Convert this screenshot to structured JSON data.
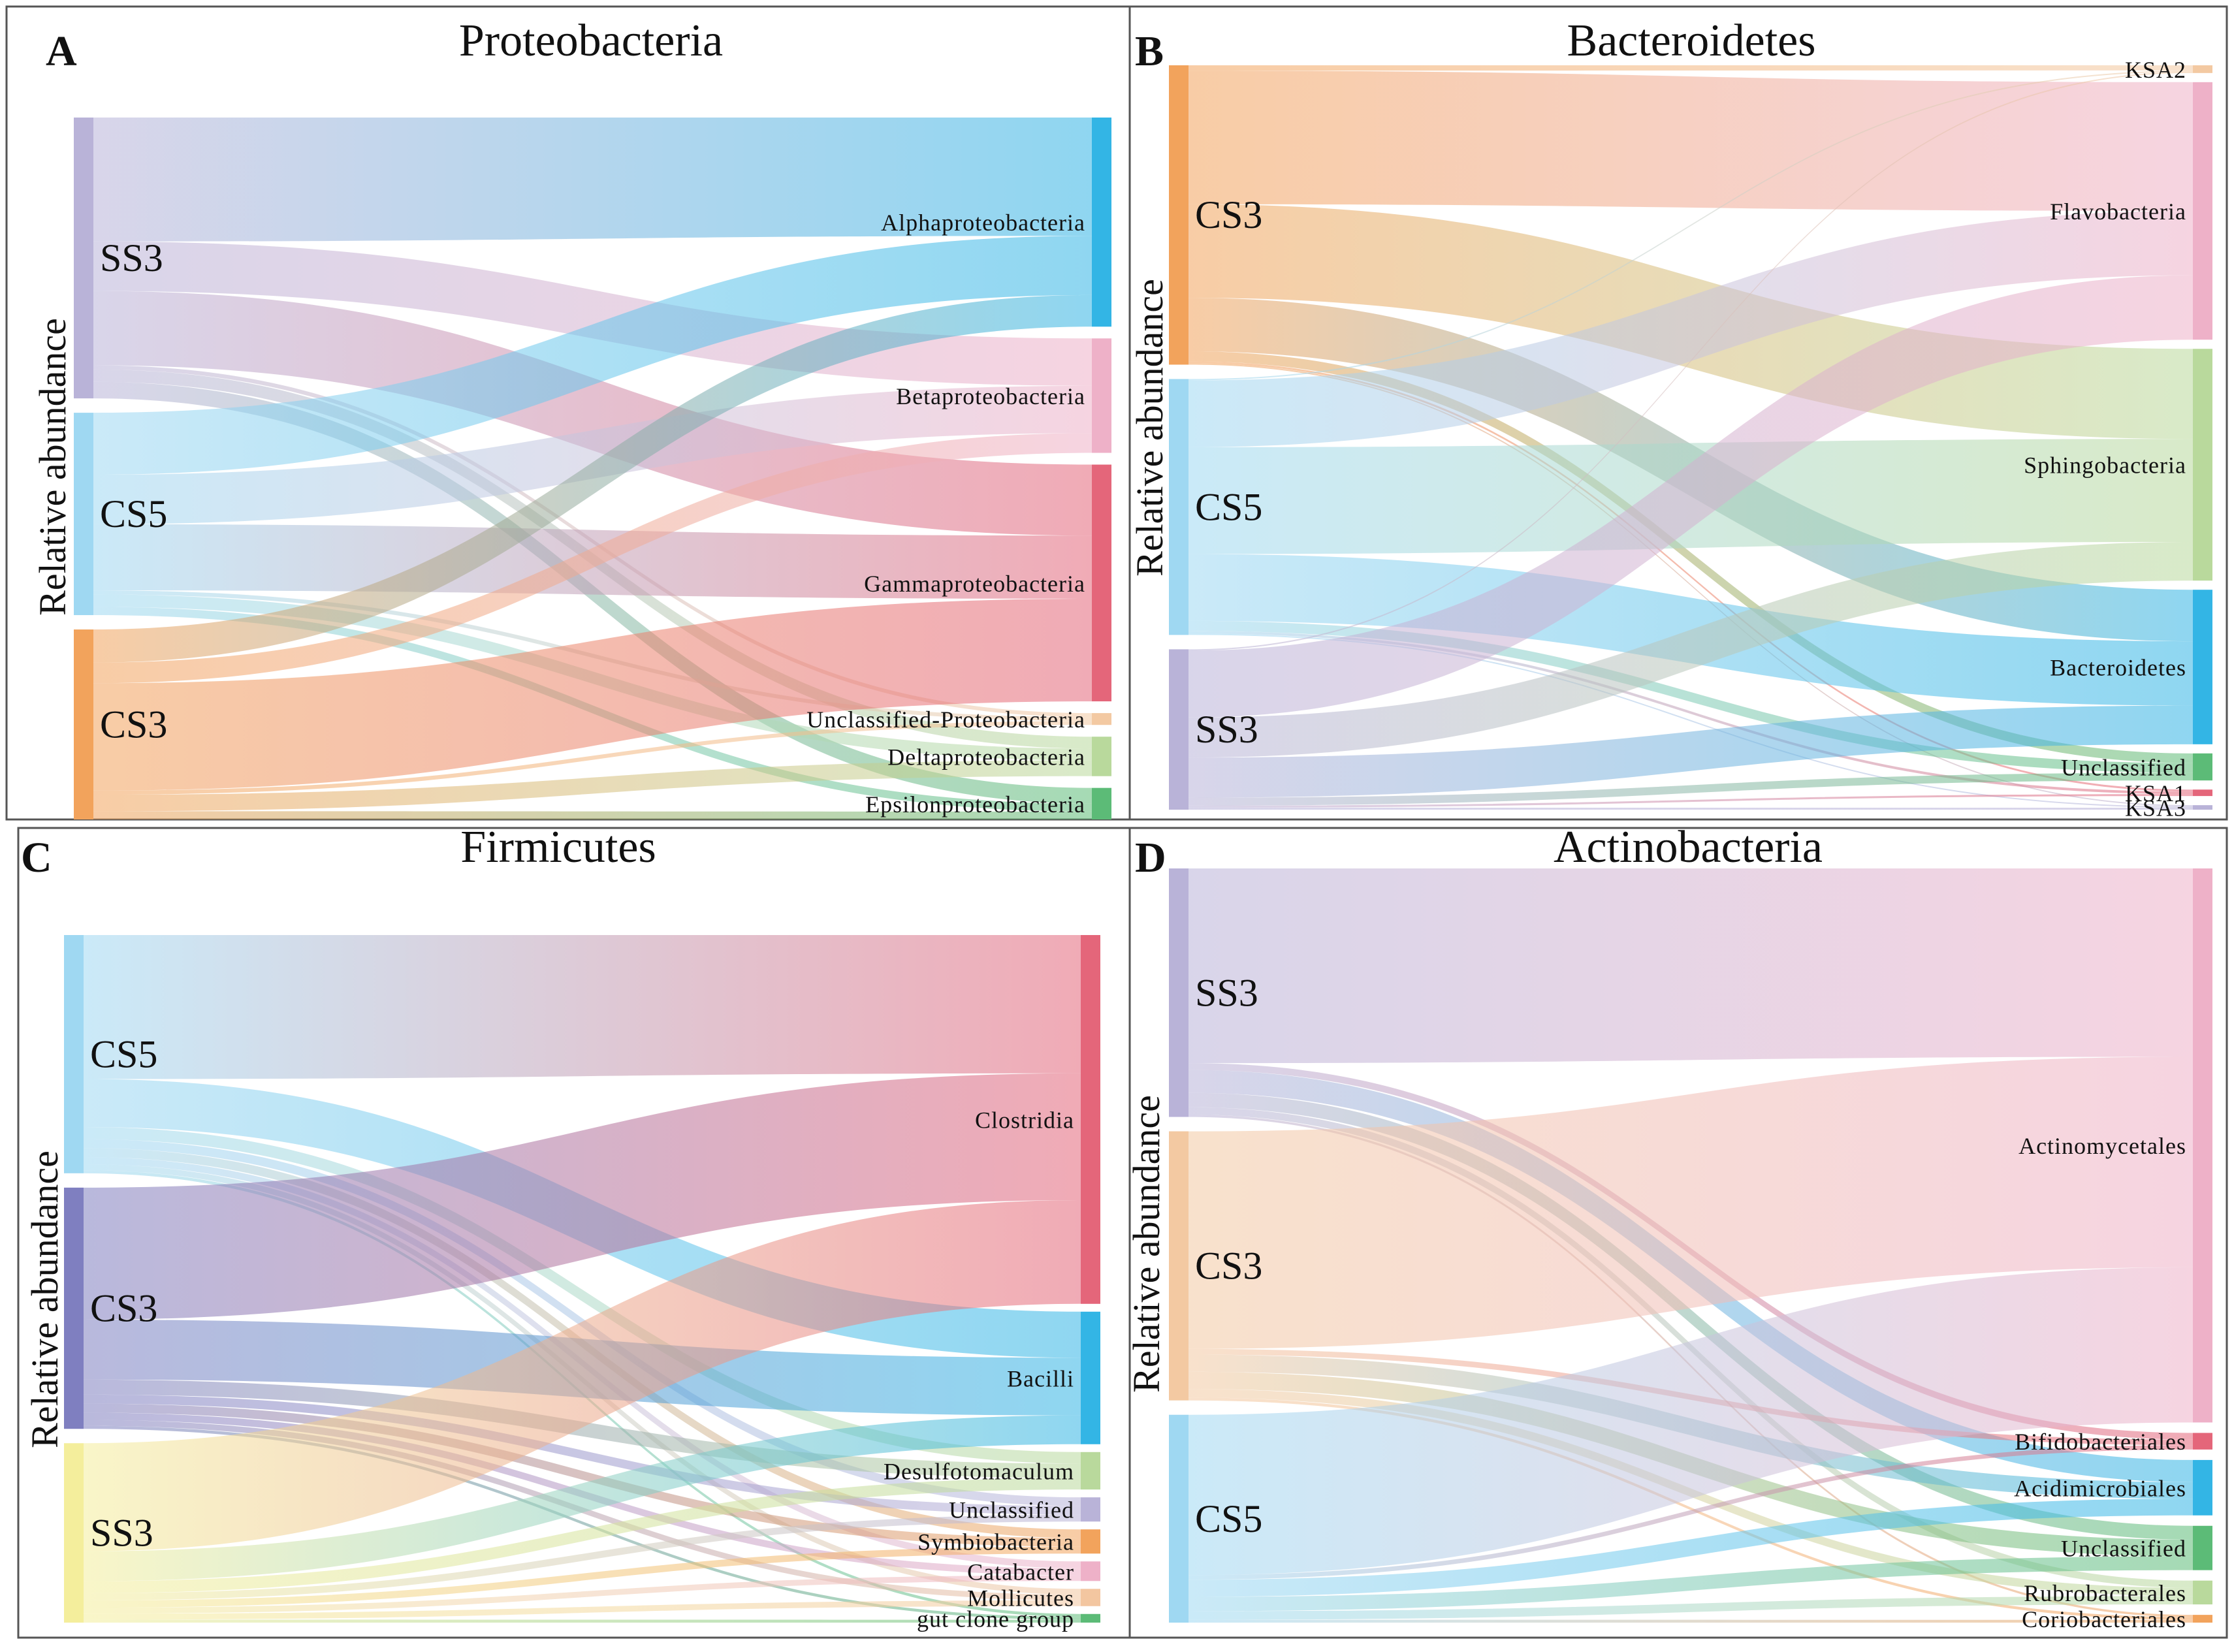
{
  "colors": {
    "purple": "#b9b3d8",
    "blue": "#33b5e5",
    "lightblue": "#9fd8f2",
    "orange": "#f2a35c",
    "pink": "#eeb1c8",
    "red": "#e4667a",
    "green": "#5cbb77",
    "lightgreen": "#b9d99c",
    "peach": "#f3c9a2",
    "navy": "#7f7fc0",
    "yellow": "#f4ee9c",
    "sand": "#f3c6a0"
  },
  "panels": [
    {
      "letter": "A",
      "title": "Proteobacteria",
      "ylabel": "Relative abundance",
      "sources": [
        {
          "name": "SS3",
          "color": "purple"
        },
        {
          "name": "CS5",
          "color": "lightblue"
        },
        {
          "name": "CS3",
          "color": "orange"
        }
      ],
      "targets": [
        {
          "name": "Alphaproteobacteria",
          "color": "blue"
        },
        {
          "name": "Betaproteobacteria",
          "color": "pink"
        },
        {
          "name": "Gammaproteobacteria",
          "color": "red"
        },
        {
          "name": "Unclassified-Proteobacteria",
          "color": "peach"
        },
        {
          "name": "Deltaproteobacteria",
          "color": "lightgreen"
        },
        {
          "name": "Epsilonproteobacteria",
          "color": "green"
        }
      ],
      "flows": [
        [
          0,
          0,
          30
        ],
        [
          0,
          1,
          12
        ],
        [
          0,
          2,
          18
        ],
        [
          0,
          3,
          1
        ],
        [
          0,
          4,
          3
        ],
        [
          0,
          5,
          4
        ],
        [
          1,
          0,
          15
        ],
        [
          1,
          1,
          12
        ],
        [
          1,
          2,
          16
        ],
        [
          1,
          3,
          1
        ],
        [
          1,
          4,
          3
        ],
        [
          1,
          5,
          2
        ],
        [
          2,
          0,
          8
        ],
        [
          2,
          1,
          5
        ],
        [
          2,
          2,
          26
        ],
        [
          2,
          3,
          1
        ],
        [
          2,
          4,
          4
        ],
        [
          2,
          5,
          2
        ]
      ]
    },
    {
      "letter": "B",
      "title": "Bacteroidetes",
      "ylabel": "Relative abundance",
      "sources": [
        {
          "name": "CS3",
          "color": "orange"
        },
        {
          "name": "CS5",
          "color": "lightblue"
        },
        {
          "name": "SS3",
          "color": "purple"
        }
      ],
      "targets": [
        {
          "name": "KSA2",
          "color": "peach"
        },
        {
          "name": "Flavobacteria",
          "color": "pink"
        },
        {
          "name": "Sphingobacteria",
          "color": "lightgreen"
        },
        {
          "name": "Bacteroidetes",
          "color": "blue"
        },
        {
          "name": "Unclassified",
          "color": "green"
        },
        {
          "name": "KSA1",
          "color": "red"
        },
        {
          "name": "KSA3",
          "color": "purple"
        }
      ],
      "flows": [
        [
          0,
          0,
          0.8
        ],
        [
          0,
          1,
          20
        ],
        [
          0,
          2,
          14
        ],
        [
          0,
          3,
          8
        ],
        [
          0,
          4,
          1.5
        ],
        [
          0,
          5,
          0.3
        ],
        [
          0,
          6,
          0.2
        ],
        [
          1,
          0,
          0.2
        ],
        [
          1,
          1,
          10
        ],
        [
          1,
          2,
          16
        ],
        [
          1,
          3,
          10
        ],
        [
          1,
          4,
          1.5
        ],
        [
          1,
          5,
          0.4
        ],
        [
          1,
          6,
          0.2
        ],
        [
          2,
          0,
          0.2
        ],
        [
          2,
          1,
          10
        ],
        [
          2,
          2,
          6
        ],
        [
          2,
          3,
          6
        ],
        [
          2,
          4,
          1.2
        ],
        [
          2,
          5,
          0.3
        ],
        [
          2,
          6,
          0.3
        ]
      ]
    },
    {
      "letter": "C",
      "title": "Firmicutes",
      "ylabel": "Relative abundance",
      "sources": [
        {
          "name": "CS5",
          "color": "lightblue"
        },
        {
          "name": "CS3",
          "color": "navy"
        },
        {
          "name": "SS3",
          "color": "yellow"
        }
      ],
      "targets": [
        {
          "name": "Clostridia",
          "color": "red"
        },
        {
          "name": "Bacilli",
          "color": "blue"
        },
        {
          "name": "Desulfotomaculum",
          "color": "lightgreen"
        },
        {
          "name": "Unclassified",
          "color": "purple"
        },
        {
          "name": "Symbiobacteria",
          "color": "orange"
        },
        {
          "name": "Catabacter",
          "color": "pink"
        },
        {
          "name": "Mollicutes",
          "color": "sand"
        },
        {
          "name": "gut clone group",
          "color": "green"
        }
      ],
      "flows": [
        [
          0,
          0,
          24
        ],
        [
          0,
          1,
          8
        ],
        [
          0,
          2,
          2
        ],
        [
          0,
          3,
          1.5
        ],
        [
          0,
          4,
          1.5
        ],
        [
          0,
          5,
          1.2
        ],
        [
          0,
          6,
          1
        ],
        [
          0,
          7,
          0.5
        ],
        [
          1,
          0,
          22
        ],
        [
          1,
          1,
          10
        ],
        [
          1,
          2,
          2.5
        ],
        [
          1,
          3,
          1.5
        ],
        [
          1,
          4,
          1.5
        ],
        [
          1,
          5,
          1.2
        ],
        [
          1,
          6,
          1
        ],
        [
          1,
          7,
          0.5
        ],
        [
          2,
          0,
          18
        ],
        [
          2,
          1,
          5
        ],
        [
          2,
          2,
          2
        ],
        [
          2,
          3,
          1.2
        ],
        [
          2,
          4,
          1.2
        ],
        [
          2,
          5,
          1
        ],
        [
          2,
          6,
          1
        ],
        [
          2,
          7,
          0.5
        ]
      ]
    },
    {
      "letter": "D",
      "title": "Actinobacteria",
      "ylabel": "Relative abundance",
      "sources": [
        {
          "name": "SS3",
          "color": "purple"
        },
        {
          "name": "CS3",
          "color": "peach"
        },
        {
          "name": "CS5",
          "color": "lightblue"
        }
      ],
      "targets": [
        {
          "name": "Actinomycetales",
          "color": "pink"
        },
        {
          "name": "Bifidobacteriales",
          "color": "red"
        },
        {
          "name": "Acidimicrobiales",
          "color": "blue"
        },
        {
          "name": "Unclassified",
          "color": "green"
        },
        {
          "name": "Rubrobacterales",
          "color": "lightgreen"
        },
        {
          "name": "Coriobacteriales",
          "color": "orange"
        }
      ],
      "flows": [
        [
          0,
          0,
          34
        ],
        [
          0,
          1,
          1.2
        ],
        [
          0,
          2,
          4
        ],
        [
          0,
          3,
          2.5
        ],
        [
          0,
          4,
          1.3
        ],
        [
          0,
          5,
          0.4
        ],
        [
          1,
          0,
          38
        ],
        [
          1,
          1,
          1
        ],
        [
          1,
          2,
          3
        ],
        [
          1,
          3,
          3
        ],
        [
          1,
          4,
          1.5
        ],
        [
          1,
          5,
          0.5
        ],
        [
          2,
          0,
          28
        ],
        [
          2,
          1,
          0.8
        ],
        [
          2,
          2,
          3
        ],
        [
          2,
          3,
          2.5
        ],
        [
          2,
          4,
          1.5
        ],
        [
          2,
          5,
          0.5
        ]
      ]
    }
  ]
}
